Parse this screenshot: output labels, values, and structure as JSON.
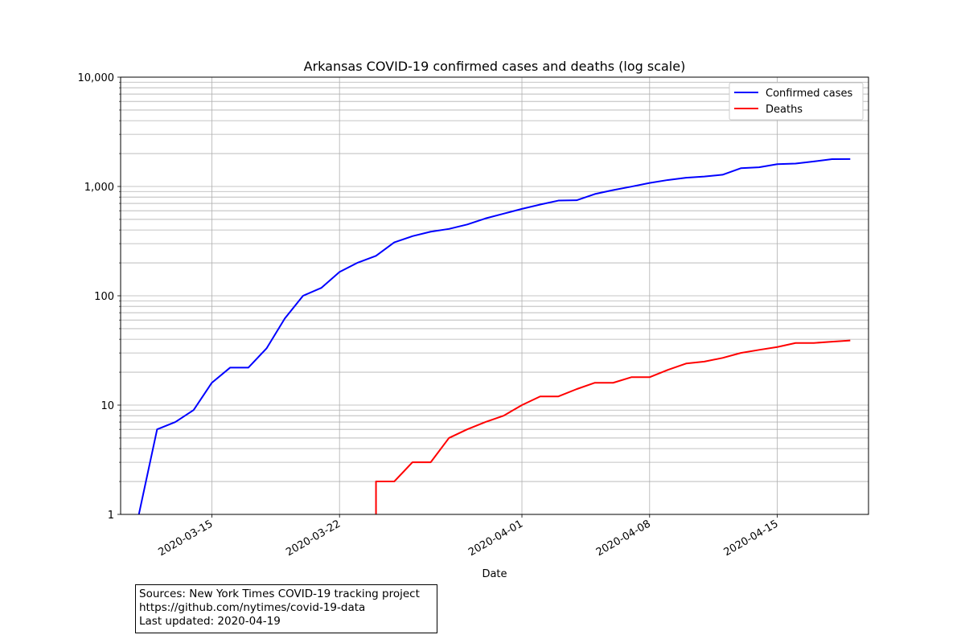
{
  "chart_data": {
    "type": "line",
    "title": "Arkansas COVID-19 confirmed cases and deaths (log scale)",
    "xlabel": "Date",
    "ylabel": "",
    "yscale": "log",
    "xlim": [
      "2020-03-10",
      "2020-04-20"
    ],
    "ylim": [
      1,
      10000
    ],
    "grid": true,
    "legend_position": "top-right",
    "x_ticks": [
      "2020-03-15",
      "2020-03-22",
      "2020-04-01",
      "2020-04-08",
      "2020-04-15"
    ],
    "y_ticks": [
      {
        "value": 1,
        "label": "1"
      },
      {
        "value": 10,
        "label": "10"
      },
      {
        "value": 100,
        "label": "100"
      },
      {
        "value": 1000,
        "label": "1,000"
      },
      {
        "value": 10000,
        "label": "10,000"
      }
    ],
    "series": [
      {
        "name": "Confirmed cases",
        "color": "#0000ff",
        "x": [
          "2020-03-11",
          "2020-03-12",
          "2020-03-13",
          "2020-03-14",
          "2020-03-15",
          "2020-03-16",
          "2020-03-17",
          "2020-03-18",
          "2020-03-19",
          "2020-03-20",
          "2020-03-21",
          "2020-03-22",
          "2020-03-23",
          "2020-03-24",
          "2020-03-25",
          "2020-03-26",
          "2020-03-27",
          "2020-03-28",
          "2020-03-29",
          "2020-03-30",
          "2020-03-31",
          "2020-04-01",
          "2020-04-02",
          "2020-04-03",
          "2020-04-04",
          "2020-04-05",
          "2020-04-06",
          "2020-04-07",
          "2020-04-08",
          "2020-04-09",
          "2020-04-10",
          "2020-04-11",
          "2020-04-12",
          "2020-04-13",
          "2020-04-14",
          "2020-04-15",
          "2020-04-16",
          "2020-04-17",
          "2020-04-18",
          "2020-04-19"
        ],
        "values": [
          1,
          6,
          7,
          9,
          16,
          22,
          22,
          33,
          62,
          100,
          118,
          165,
          201,
          232,
          308,
          351,
          386,
          409,
          449,
          510,
          564,
          624,
          683,
          743,
          748,
          853,
          927,
          997,
          1077,
          1146,
          1203,
          1233,
          1280,
          1469,
          1498,
          1600,
          1620,
          1695,
          1777,
          1781
        ]
      },
      {
        "name": "Deaths",
        "color": "#ff0000",
        "x": [
          "2020-03-24",
          "2020-03-24",
          "2020-03-25",
          "2020-03-26",
          "2020-03-27",
          "2020-03-28",
          "2020-03-29",
          "2020-03-30",
          "2020-03-31",
          "2020-04-01",
          "2020-04-02",
          "2020-04-03",
          "2020-04-04",
          "2020-04-05",
          "2020-04-06",
          "2020-04-07",
          "2020-04-08",
          "2020-04-09",
          "2020-04-10",
          "2020-04-11",
          "2020-04-12",
          "2020-04-13",
          "2020-04-14",
          "2020-04-15",
          "2020-04-16",
          "2020-04-17",
          "2020-04-18",
          "2020-04-19"
        ],
        "values": [
          1,
          2,
          2,
          3,
          3,
          5,
          6,
          7,
          8,
          10,
          12,
          12,
          14,
          16,
          16,
          18,
          18,
          21,
          24,
          25,
          27,
          30,
          32,
          34,
          37,
          37,
          38,
          39
        ]
      }
    ]
  },
  "source_note": {
    "line1": "Sources: New York Times COVID-19 tracking project",
    "line2": "https://github.com/nytimes/covid-19-data",
    "line3": "Last updated: 2020-04-19"
  }
}
